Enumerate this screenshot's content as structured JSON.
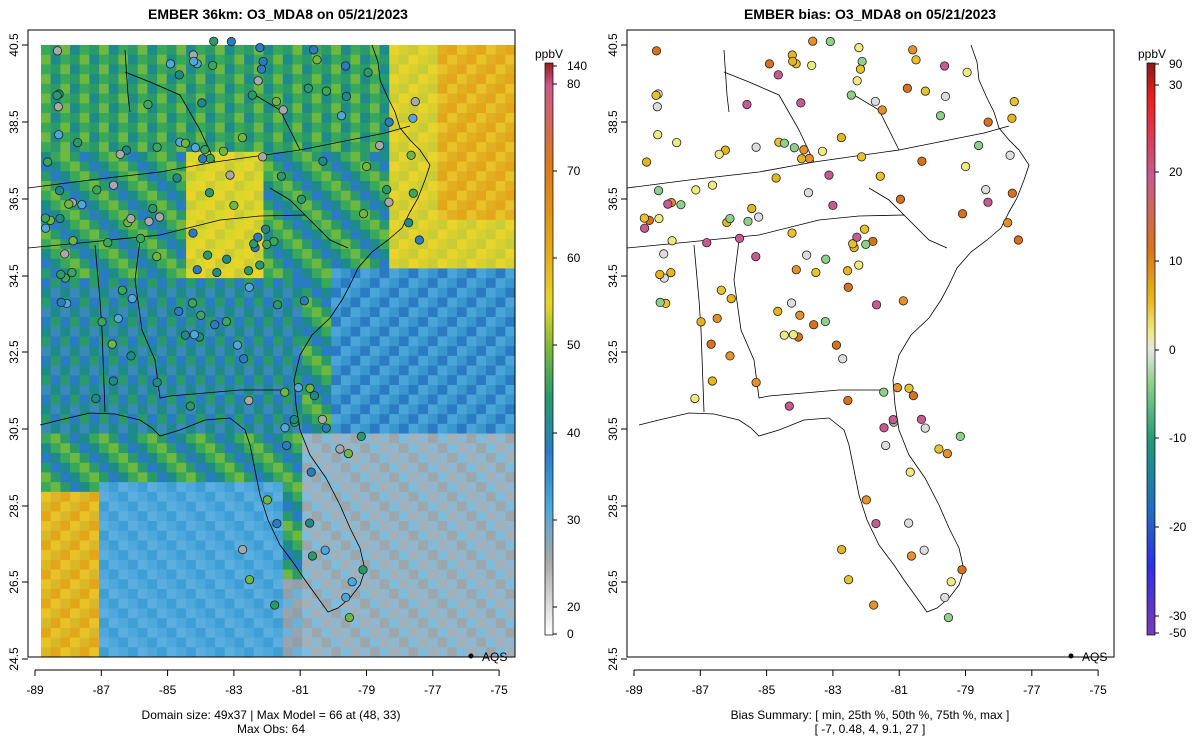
{
  "left_map": {
    "title": "EMBER 36km: O3_MDA8 on 05/21/2023",
    "footer_line1": "Domain size: 49x37 | Max Model = 66 at (48, 33)",
    "footer_line2": "Max Obs: 64",
    "legend_label": "AQS",
    "colorbar": {
      "unit": "ppbV",
      "ticks": [
        "140",
        "80",
        "70",
        "60",
        "50",
        "40",
        "30",
        "20",
        "0"
      ],
      "colors": [
        "#9c1c1c",
        "#c95a8a",
        "#d97a1e",
        "#e3a61a",
        "#e8d42a",
        "#39a85a",
        "#1f8a8a",
        "#2a7cc2",
        "#4ea8dc",
        "#a8a8a8",
        "#ffffff"
      ]
    }
  },
  "right_map": {
    "title": "EMBER bias: O3_MDA8 on 05/21/2023",
    "footer_line1": "Bias Summary: [ min, 25th %, 50th %, 75th %, max ]",
    "footer_line2": "[ -7,   0.48,   4,   9.1,   27 ]",
    "legend_label": "AQS",
    "colorbar": {
      "unit": "ppbV",
      "ticks": [
        "90",
        "30",
        "20",
        "10",
        "0",
        "-10",
        "-20",
        "-30",
        "-50"
      ],
      "colors": [
        "#8b1a1a",
        "#e8201e",
        "#c85a90",
        "#d9701c",
        "#e6b41c",
        "#eeea80",
        "#dddddd",
        "#8ed08a",
        "#1e9a78",
        "#1e6ec0",
        "#3030e0",
        "#7a3ab8"
      ]
    }
  },
  "lat_ticks": [
    "40.5",
    "38.5",
    "36.5",
    "34.5",
    "32.5",
    "30.5",
    "28.5",
    "26.5",
    "24.5"
  ],
  "lon_ticks": [
    "-89",
    "-87",
    "-85",
    "-83",
    "-81",
    "-79",
    "-77",
    "-75"
  ]
}
